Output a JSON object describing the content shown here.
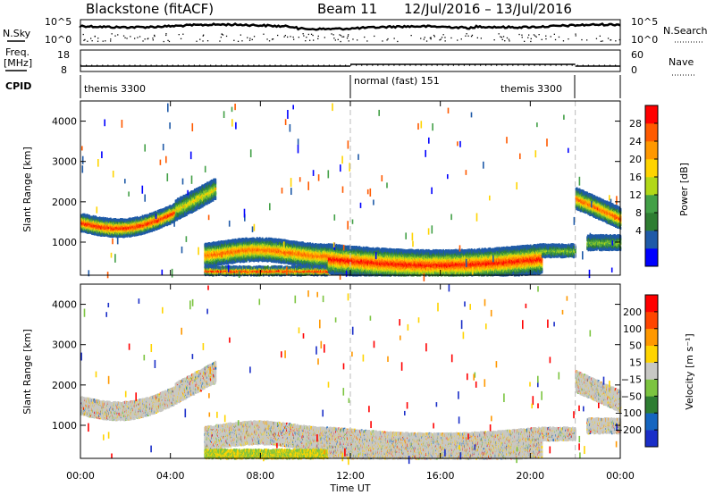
{
  "header": {
    "station": "Blackstone (fitACF)",
    "beam": "Beam 11",
    "date_range": "12/Jul/2016 – 13/Jul/2016"
  },
  "noise_panel": {
    "left_label": "N.Sky",
    "right_label": "N.Search",
    "left_ticks": [
      "10^5",
      "10^0"
    ],
    "right_ticks": [
      "10^5",
      "10^0"
    ]
  },
  "freq_panel": {
    "left_label_1": "Freq.",
    "left_label_2": "[MHz]",
    "left_ticks": [
      "18",
      "8"
    ],
    "right_label": "Nave",
    "right_ticks": [
      "60",
      "0"
    ]
  },
  "cpid_panel": {
    "label": "CPID",
    "segments": [
      {
        "name": "themis 3300",
        "start_hour": 0,
        "end_hour": 12
      },
      {
        "name": "normal (fast) 151",
        "start_hour": 12,
        "end_hour": 22
      },
      {
        "name": "themis 3300",
        "start_hour": 22,
        "end_hour": 24
      }
    ]
  },
  "power_panel": {
    "ylabel": "Slant Range [km]",
    "yticks": [
      1000,
      2000,
      3000,
      4000
    ],
    "colorbar_label": "Power [dB]",
    "colorbar_ticks": [
      "28",
      "24",
      "20",
      "16",
      "12",
      "8",
      "4"
    ],
    "colors": [
      "#0000ff",
      "#1f5aa8",
      "#2e7d32",
      "#43a047",
      "#b2d818",
      "#ffd400",
      "#ff9800",
      "#ff5a00",
      "#ff0000"
    ]
  },
  "velocity_panel": {
    "ylabel": "Slant Range [km]",
    "yticks": [
      1000,
      2000,
      3000,
      4000
    ],
    "colorbar_label": "Velocity [m s⁻¹]",
    "colorbar_ticks": [
      "200",
      "100",
      "50",
      "15",
      "−15",
      "−50",
      "−100",
      "−200"
    ],
    "colors": [
      "#1a2ec8",
      "#1565c0",
      "#2e7d32",
      "#7cc440",
      "#c8c8c4",
      "#ffd400",
      "#ff9800",
      "#ff4500",
      "#ff0000"
    ]
  },
  "xaxis": {
    "label": "Time UT",
    "ticks": [
      "00:00",
      "04:00",
      "08:00",
      "12:00",
      "16:00",
      "20:00",
      "00:00"
    ]
  },
  "chart_data": {
    "type": "heatmap",
    "x_range_hours": [
      0,
      24
    ],
    "y_range_km": [
      180,
      4500
    ],
    "mode_change_hours": [
      12,
      22
    ],
    "power_echo_bands": [
      {
        "t0": 0.0,
        "t1": 4.0,
        "r_center_km": 1400,
        "peak_db": 28
      },
      {
        "t0": 4.0,
        "t1": 6.0,
        "r_center_km": 2200,
        "peak_db": 16
      },
      {
        "t0": 5.0,
        "t1": 11.0,
        "r_center_km": 700,
        "peak_db": 24
      },
      {
        "t0": 11.0,
        "t1": 20.0,
        "r_center_km": 550,
        "peak_db": 30
      },
      {
        "t0": 22.0,
        "t1": 24.0,
        "r_center_km": 1800,
        "peak_db": 24
      }
    ],
    "velocity_echo_bands": [
      {
        "t0": 0.0,
        "t1": 4.0,
        "r_center_km": 1400,
        "velocity_ms": 0
      },
      {
        "t0": 5.0,
        "t1": 11.0,
        "r_center_km": 800,
        "velocity_ms": 0
      },
      {
        "t0": 11.0,
        "t1": 20.0,
        "r_center_km": 650,
        "velocity_ms": 0
      },
      {
        "t0": 22.0,
        "t1": 24.0,
        "r_center_km": 1800,
        "velocity_ms": 0
      }
    ]
  }
}
